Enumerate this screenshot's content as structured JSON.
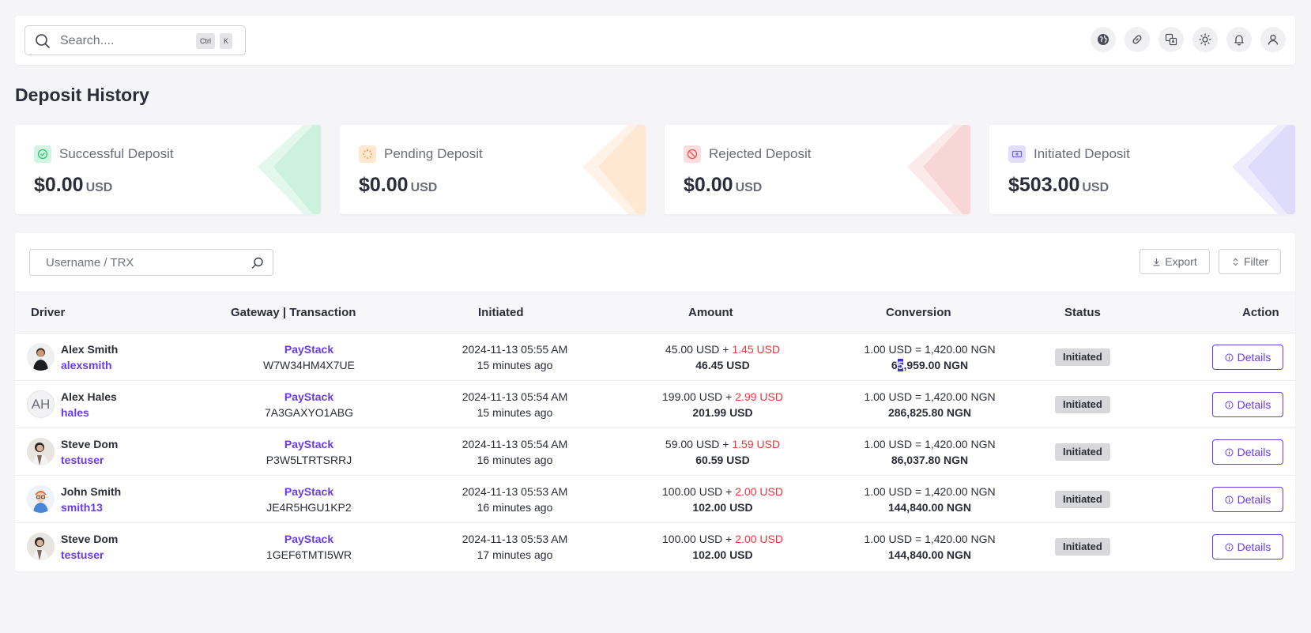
{
  "topbar": {
    "search_placeholder": "Search....",
    "kbd_ctrl": "Ctrl",
    "kbd_k": "K",
    "icons": [
      "globe-icon",
      "link-icon",
      "translate-icon",
      "sun-icon",
      "bell-icon",
      "user-icon"
    ]
  },
  "page_title": "Deposit History",
  "cards": [
    {
      "label": "Successful Deposit",
      "value": "$0.00",
      "currency": "USD",
      "color": "#28c76f",
      "icon": "check-circle-icon"
    },
    {
      "label": "Pending Deposit",
      "value": "$0.00",
      "currency": "USD",
      "color": "#ff9f43",
      "icon": "spinner-icon"
    },
    {
      "label": "Rejected Deposit",
      "value": "$0.00",
      "currency": "USD",
      "color": "#ea5455",
      "icon": "ban-icon"
    },
    {
      "label": "Initiated Deposit",
      "value": "$503.00",
      "currency": "USD",
      "color": "#7367f0",
      "icon": "money-bill-icon"
    }
  ],
  "table": {
    "filter_placeholder": "Username / TRX",
    "export_label": "Export",
    "filter_label": "Filter",
    "headers": {
      "driver": "Driver",
      "gateway": "Gateway | Transaction",
      "initiated": "Initiated",
      "amount": "Amount",
      "conversion": "Conversion",
      "status": "Status",
      "action": "Action"
    },
    "rows": [
      {
        "name": "Alex Smith",
        "username": "alexsmith",
        "gateway": "PayStack",
        "trx": "W7W34HM4X7UE",
        "date": "2024-11-13 05:55 AM",
        "ago": "15 minutes ago",
        "amount": "45.00 USD",
        "plus": " + ",
        "charge": "1.45 USD",
        "total": "46.45 USD",
        "rate": "1.00 USD = 1,420.00 NGN",
        "converted_pre": "6",
        "converted_hl": "5",
        "converted_post": ",959.00 NGN",
        "status": "Initiated",
        "action": "Details",
        "avatar": "photo"
      },
      {
        "name": "Alex Hales",
        "username": "hales",
        "gateway": "PayStack",
        "trx": "7A3GAXYO1ABG",
        "date": "2024-11-13 05:54 AM",
        "ago": "15 minutes ago",
        "amount": "199.00 USD",
        "plus": " + ",
        "charge": "2.99 USD",
        "total": "201.99 USD",
        "rate": "1.00 USD = 1,420.00 NGN",
        "converted_pre": "286,825.80 NGN",
        "converted_hl": "",
        "converted_post": "",
        "status": "Initiated",
        "action": "Details",
        "avatar": "AH"
      },
      {
        "name": "Steve Dom",
        "username": "testuser",
        "gateway": "PayStack",
        "trx": "P3W5LTRTSRRJ",
        "date": "2024-11-13 05:54 AM",
        "ago": "16 minutes ago",
        "amount": "59.00 USD",
        "plus": " + ",
        "charge": "1.59 USD",
        "total": "60.59 USD",
        "rate": "1.00 USD = 1,420.00 NGN",
        "converted_pre": "86,037.80 NGN",
        "converted_hl": "",
        "converted_post": "",
        "status": "Initiated",
        "action": "Details",
        "avatar": "photo"
      },
      {
        "name": "John Smith",
        "username": "smith13",
        "gateway": "PayStack",
        "trx": "JE4R5HGU1KP2",
        "date": "2024-11-13 05:53 AM",
        "ago": "16 minutes ago",
        "amount": "100.00 USD",
        "plus": " + ",
        "charge": "2.00 USD",
        "total": "102.00 USD",
        "rate": "1.00 USD = 1,420.00 NGN",
        "converted_pre": "144,840.00 NGN",
        "converted_hl": "",
        "converted_post": "",
        "status": "Initiated",
        "action": "Details",
        "avatar": "photo"
      },
      {
        "name": "Steve Dom",
        "username": "testuser",
        "gateway": "PayStack",
        "trx": "1GEF6TMTI5WR",
        "date": "2024-11-13 05:53 AM",
        "ago": "17 minutes ago",
        "amount": "100.00 USD",
        "plus": " + ",
        "charge": "2.00 USD",
        "total": "102.00 USD",
        "rate": "1.00 USD = 1,420.00 NGN",
        "converted_pre": "144,840.00 NGN",
        "converted_hl": "",
        "converted_post": "",
        "status": "Initiated",
        "action": "Details",
        "avatar": "photo"
      }
    ]
  }
}
